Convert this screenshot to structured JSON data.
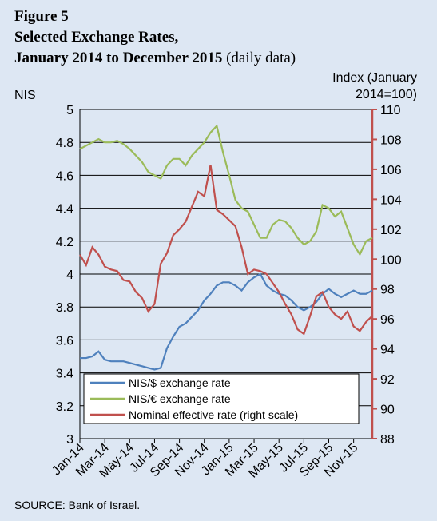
{
  "chart_data": {
    "type": "line",
    "figure": "Figure 5",
    "title": "Selected Exchange Rates,",
    "title2": "January 2014 to December 2015",
    "subtitle": "(daily data)",
    "ylabel": "NIS",
    "y2label": [
      "Index (January",
      "2014=100)"
    ],
    "source": "SOURCE: Bank of Israel.",
    "categories": [
      "Jan-14",
      null,
      null,
      null,
      "Mar-14",
      null,
      null,
      null,
      "May-14",
      null,
      null,
      null,
      "Jul-14",
      null,
      null,
      null,
      "Sep-14",
      null,
      null,
      null,
      "Nov-14",
      null,
      null,
      null,
      "Jan-15",
      null,
      null,
      null,
      "Mar-15",
      null,
      null,
      null,
      "May-15",
      null,
      null,
      null,
      "Jul-15",
      null,
      null,
      null,
      "Sep-15",
      null,
      null,
      null,
      "Nov-15",
      null,
      null,
      null
    ],
    "series": [
      {
        "name": "NIS/$ exchange rate",
        "color": "#4f81bd",
        "values": [
          3.49,
          3.49,
          3.5,
          3.53,
          3.48,
          3.47,
          3.47,
          3.47,
          3.46,
          3.45,
          3.44,
          3.43,
          3.42,
          3.43,
          3.55,
          3.62,
          3.68,
          3.7,
          3.74,
          3.78,
          3.84,
          3.88,
          3.93,
          3.95,
          3.95,
          3.93,
          3.9,
          3.95,
          3.98,
          4.0,
          3.93,
          3.9,
          3.88,
          3.87,
          3.84,
          3.8,
          3.78,
          3.8,
          3.83,
          3.88,
          3.91,
          3.88,
          3.86,
          3.88,
          3.9,
          3.88,
          3.88,
          3.9
        ]
      },
      {
        "name": "NIS/€ exchange rate",
        "color": "#9bbb59",
        "values": [
          4.76,
          4.78,
          4.8,
          4.82,
          4.8,
          4.8,
          4.81,
          4.79,
          4.76,
          4.72,
          4.68,
          4.62,
          4.6,
          4.58,
          4.66,
          4.7,
          4.7,
          4.66,
          4.72,
          4.76,
          4.8,
          4.86,
          4.9,
          4.74,
          4.6,
          4.45,
          4.4,
          4.38,
          4.3,
          4.22,
          4.22,
          4.3,
          4.33,
          4.32,
          4.28,
          4.22,
          4.18,
          4.2,
          4.26,
          4.42,
          4.4,
          4.35,
          4.38,
          4.28,
          4.18,
          4.12,
          4.2,
          4.22
        ]
      },
      {
        "name": "Nominal effective rate (right scale)",
        "color": "#c0504d",
        "axis": "y2",
        "values": [
          100.3,
          99.6,
          100.8,
          100.3,
          99.5,
          99.3,
          99.2,
          98.6,
          98.5,
          97.8,
          97.4,
          96.5,
          97.0,
          99.7,
          100.4,
          101.6,
          102.0,
          102.5,
          103.5,
          104.5,
          104.2,
          106.3,
          103.3,
          103.0,
          102.6,
          102.2,
          100.8,
          99.0,
          99.3,
          99.2,
          99.0,
          98.4,
          97.8,
          97.0,
          96.3,
          95.3,
          95.0,
          96.2,
          97.5,
          97.8,
          96.8,
          96.3,
          96.0,
          96.5,
          95.5,
          95.2,
          95.8,
          96.2
        ]
      }
    ],
    "ylim": [
      3,
      5
    ],
    "yticks": [
      3,
      3.2,
      3.4,
      3.6,
      3.8,
      4,
      4.2,
      4.4,
      4.6,
      4.8,
      5
    ],
    "y2lim": [
      88,
      110
    ],
    "y2ticks": [
      88,
      90,
      92,
      94,
      96,
      98,
      100,
      102,
      104,
      106,
      108,
      110
    ],
    "grid": true,
    "legend": "lower center"
  }
}
